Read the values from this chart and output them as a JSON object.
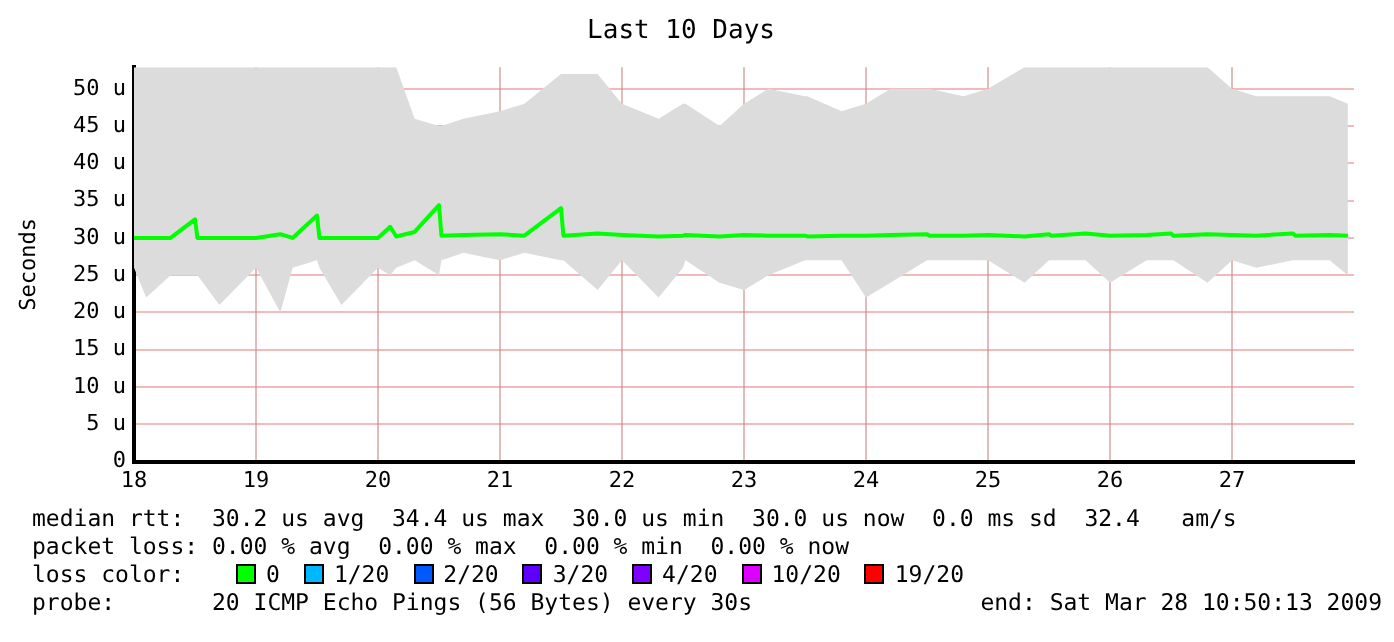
{
  "chart_data": {
    "type": "line",
    "title": "Last 10 Days",
    "ylabel": "Seconds",
    "x": [
      18,
      18.1,
      18.3,
      18.5,
      18.52,
      18.7,
      19,
      19.2,
      19.3,
      19.5,
      19.52,
      19.7,
      20,
      20.1,
      20.15,
      20.3,
      20.5,
      20.52,
      20.7,
      21,
      21.2,
      21.5,
      21.52,
      21.8,
      22,
      22.3,
      22.5,
      22.52,
      22.8,
      23,
      23.2,
      23.5,
      23.52,
      23.8,
      24,
      24.2,
      24.5,
      24.52,
      24.8,
      25,
      25.3,
      25.5,
      25.52,
      25.8,
      26,
      26.3,
      26.5,
      26.52,
      26.8,
      27,
      27.2,
      27.5,
      27.52,
      27.8,
      27.95
    ],
    "series": [
      {
        "color": "#00ff00",
        "line_style": "solid",
        "values": [
          30,
          30,
          30,
          32.5,
          30,
          30,
          30,
          30.5,
          30,
          33,
          30,
          30,
          30,
          31.5,
          30.2,
          30.8,
          34.4,
          30.3,
          30.4,
          30.5,
          30.3,
          34,
          30.3,
          30.6,
          30.4,
          30.2,
          30.3,
          30.4,
          30.2,
          30.4,
          30.3,
          30.3,
          30.2,
          30.3,
          30.3,
          30.4,
          30.5,
          30.3,
          30.3,
          30.4,
          30.2,
          30.5,
          30.3,
          30.6,
          30.3,
          30.4,
          30.6,
          30.3,
          30.5,
          30.4,
          30.3,
          30.6,
          30.3,
          30.4,
          30.3
        ],
        "lower": [
          26,
          22,
          25,
          25,
          25,
          21,
          26,
          20,
          26,
          27,
          26,
          21,
          26,
          25,
          26,
          27,
          25,
          27,
          28,
          27,
          28,
          27,
          27,
          23,
          27,
          22,
          26,
          27,
          24,
          23,
          25,
          27,
          27,
          27,
          22,
          24,
          27,
          27,
          27,
          27,
          24,
          27,
          27,
          27,
          24,
          27,
          27,
          27,
          24,
          27,
          26,
          27,
          27,
          27,
          25
        ],
        "upper": [
          52.9,
          52.9,
          52.9,
          52.9,
          52.9,
          52.9,
          52.9,
          52.9,
          52.9,
          52.9,
          52.9,
          52.9,
          52.9,
          52.9,
          52.9,
          46,
          45,
          45,
          46,
          47,
          48,
          52,
          52,
          52,
          48,
          46,
          48,
          48,
          45,
          48,
          50,
          49,
          49,
          47,
          48,
          50,
          50,
          50,
          49,
          50,
          52.9,
          52.9,
          52.9,
          52.9,
          52.9,
          52.9,
          52.9,
          52.9,
          52.9,
          50,
          49,
          49,
          49,
          49,
          48
        ]
      }
    ],
    "xlim": [
      18,
      28
    ],
    "xticks": [
      18,
      19,
      20,
      21,
      22,
      23,
      24,
      25,
      26,
      27
    ],
    "ylim": [
      0,
      52.9
    ],
    "yticks": [
      0,
      {
        "value": 5,
        "label": "5 u"
      },
      {
        "value": 10,
        "label": "10 u"
      },
      {
        "value": 15,
        "label": "15 u"
      },
      {
        "value": 20,
        "label": "20 u"
      },
      {
        "value": 25,
        "label": "25 u"
      },
      {
        "value": 30,
        "label": "30 u"
      },
      {
        "value": 35,
        "label": "35 u"
      },
      {
        "value": 40,
        "label": "40 u"
      },
      {
        "value": 45,
        "label": "45 u"
      },
      {
        "value": 50,
        "label": "50 u"
      }
    ],
    "grid": true,
    "legend": false,
    "marker": "none",
    "annotations": [
      "median rtt:  30.2 us avg  34.4 us max  30.0 us min  30.0 us now  0.0 ms sd  32.4   am/s",
      "packet loss: 0.00 % avg  0.00 % max  0.00 % min  0.00 % now",
      "loss color:",
      "0",
      "1/20",
      "2/20",
      "3/20",
      "4/20",
      "10/20",
      "19/20",
      "probe:       20 ICMP Echo Pings (56 Bytes) every 30s",
      "end: Sat Mar 28 10:50:13 2009"
    ]
  }
}
